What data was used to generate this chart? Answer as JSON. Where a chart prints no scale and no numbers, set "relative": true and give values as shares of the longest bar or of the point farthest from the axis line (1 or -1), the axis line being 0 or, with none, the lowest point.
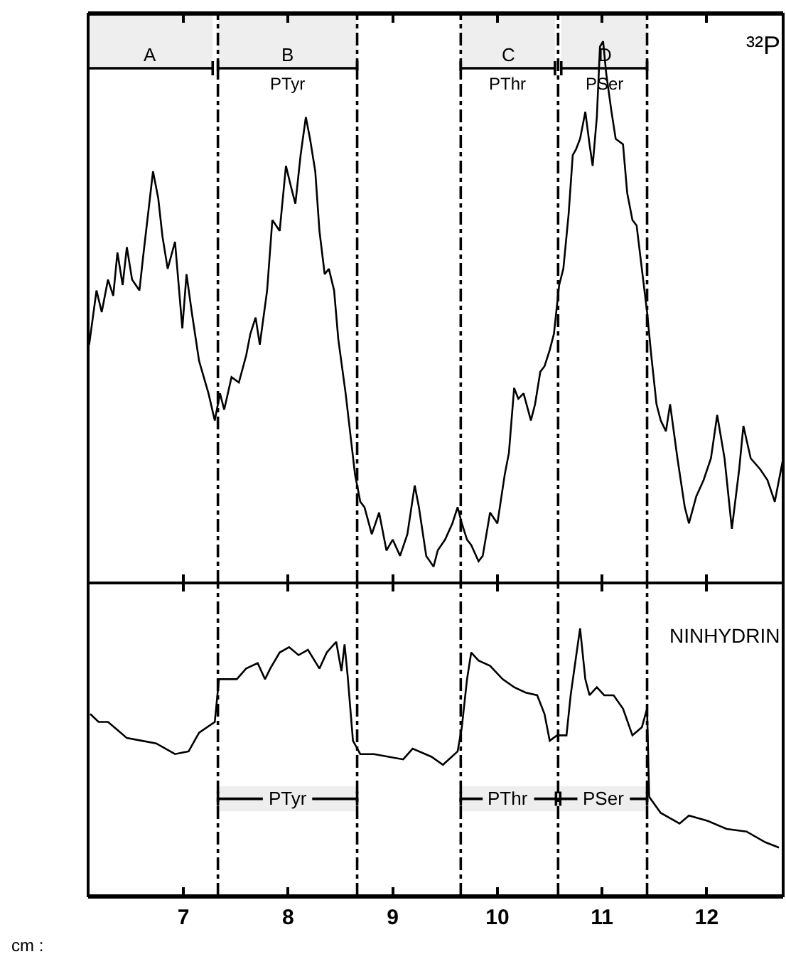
{
  "chart_data": [
    {
      "type": "line",
      "relative": true,
      "tick_labels": false,
      "color": "#000000",
      "line_style": "solid",
      "marker": "none",
      "grid": false,
      "legend": false,
      "xlim": [
        6.09,
        12.73
      ],
      "xticks": [
        7,
        8,
        9,
        10,
        11,
        12
      ],
      "x": [
        6.1,
        6.17,
        6.22,
        6.28,
        6.33,
        6.37,
        6.42,
        6.46,
        6.51,
        6.58,
        6.62,
        6.71,
        6.76,
        6.8,
        6.85,
        6.92,
        6.99,
        7.03,
        7.08,
        7.15,
        7.24,
        7.3,
        7.35,
        7.39,
        7.46,
        7.53,
        7.6,
        7.64,
        7.69,
        7.73,
        7.8,
        7.85,
        7.92,
        7.98,
        8.03,
        8.07,
        8.12,
        8.17,
        8.21,
        8.26,
        8.3,
        8.35,
        8.39,
        8.44,
        8.48,
        8.55,
        8.64,
        8.69,
        8.73,
        8.8,
        8.87,
        8.94,
        9.0,
        9.07,
        9.14,
        9.21,
        9.25,
        9.32,
        9.39,
        9.43,
        9.5,
        9.57,
        9.62,
        9.66,
        9.71,
        9.75,
        9.82,
        9.86,
        9.93,
        10.0,
        10.07,
        10.11,
        10.16,
        10.2,
        10.25,
        10.32,
        10.36,
        10.41,
        10.45,
        10.5,
        10.54,
        10.59,
        10.63,
        10.68,
        10.72,
        10.75,
        10.79,
        10.84,
        10.88,
        10.91,
        10.95,
        10.98,
        11.01,
        11.04,
        11.09,
        11.13,
        11.2,
        11.24,
        11.29,
        11.33,
        11.38,
        11.43,
        11.47,
        11.52,
        11.56,
        11.61,
        11.65,
        11.72,
        11.79,
        11.83,
        11.9,
        11.97,
        12.04,
        12.1,
        12.17,
        12.24,
        12.31,
        12.35,
        12.42,
        12.51,
        12.58,
        12.65,
        12.73
      ],
      "values": [
        0.44,
        0.54,
        0.5,
        0.56,
        0.53,
        0.61,
        0.55,
        0.62,
        0.56,
        0.54,
        0.61,
        0.76,
        0.71,
        0.64,
        0.58,
        0.63,
        0.47,
        0.57,
        0.5,
        0.41,
        0.35,
        0.3,
        0.35,
        0.32,
        0.38,
        0.37,
        0.42,
        0.46,
        0.49,
        0.44,
        0.54,
        0.67,
        0.65,
        0.77,
        0.73,
        0.7,
        0.79,
        0.86,
        0.82,
        0.76,
        0.65,
        0.57,
        0.58,
        0.54,
        0.45,
        0.35,
        0.2,
        0.15,
        0.14,
        0.09,
        0.13,
        0.06,
        0.08,
        0.05,
        0.09,
        0.18,
        0.14,
        0.05,
        0.03,
        0.06,
        0.08,
        0.11,
        0.14,
        0.11,
        0.08,
        0.07,
        0.04,
        0.05,
        0.13,
        0.11,
        0.2,
        0.24,
        0.36,
        0.34,
        0.35,
        0.3,
        0.33,
        0.39,
        0.4,
        0.43,
        0.46,
        0.55,
        0.58,
        0.68,
        0.79,
        0.8,
        0.82,
        0.87,
        0.81,
        0.77,
        0.86,
        0.99,
        1,
        0.94,
        0.87,
        0.82,
        0.81,
        0.72,
        0.67,
        0.66,
        0.58,
        0.5,
        0.42,
        0.33,
        0.3,
        0.28,
        0.33,
        0.23,
        0.14,
        0.11,
        0.16,
        0.19,
        0.23,
        0.31,
        0.23,
        0.1,
        0.21,
        0.29,
        0.23,
        0.21,
        0.19,
        0.15,
        0.23
      ],
      "ref_lines": [
        {
          "axis": "x",
          "value": 7.33,
          "line_style": "dashed"
        },
        {
          "axis": "x",
          "value": 8.66,
          "line_style": "dashed"
        },
        {
          "axis": "x",
          "value": 9.65,
          "line_style": "dashed"
        },
        {
          "axis": "x",
          "value": 10.58,
          "line_style": "dashed"
        },
        {
          "axis": "x",
          "value": 11.43,
          "line_style": "dashed"
        }
      ],
      "bands": [
        {
          "axis": "x",
          "from": 6.09,
          "to": 7.28,
          "label": "A"
        },
        {
          "axis": "x",
          "from": 7.33,
          "to": 8.66,
          "label": "B\nPTyr"
        },
        {
          "axis": "x",
          "from": 9.65,
          "to": 10.55,
          "label": "C\nPThr"
        },
        {
          "axis": "x",
          "from": 10.61,
          "to": 11.43,
          "label": "D\nPSer"
        }
      ],
      "annotations": [
        "³²P"
      ]
    },
    {
      "type": "line",
      "relative": true,
      "tick_labels": "x",
      "color": "#000000",
      "line_style": "solid",
      "marker": "none",
      "grid": false,
      "legend": false,
      "xlabel": "cm :",
      "xlim": [
        6.09,
        12.73
      ],
      "xticks": [
        7,
        8,
        9,
        10,
        11,
        12
      ],
      "x": [
        6.11,
        6.19,
        6.28,
        6.37,
        6.46,
        6.6,
        6.74,
        6.92,
        7.05,
        7.15,
        7.3,
        7.34,
        7.42,
        7.51,
        7.6,
        7.71,
        7.78,
        7.83,
        7.92,
        8.01,
        8.1,
        8.19,
        8.3,
        8.37,
        8.46,
        8.51,
        8.54,
        8.57,
        8.62,
        8.69,
        8.82,
        8.96,
        9.1,
        9.19,
        9.37,
        9.48,
        9.62,
        9.66,
        9.71,
        9.75,
        9.82,
        9.93,
        10.05,
        10.16,
        10.27,
        10.38,
        10.45,
        10.5,
        10.57,
        10.66,
        10.7,
        10.75,
        10.79,
        10.84,
        10.88,
        10.95,
        11.02,
        11.11,
        11.2,
        11.29,
        11.38,
        11.43,
        11.45,
        11.56,
        11.74,
        11.83,
        12.01,
        12.19,
        12.38,
        12.56,
        12.69
      ],
      "values": [
        0.68,
        0.65,
        0.65,
        0.62,
        0.59,
        0.58,
        0.57,
        0.53,
        0.54,
        0.61,
        0.65,
        0.81,
        0.81,
        0.81,
        0.85,
        0.87,
        0.81,
        0.85,
        0.91,
        0.93,
        0.9,
        0.92,
        0.85,
        0.91,
        0.95,
        0.84,
        0.94,
        0.82,
        0.58,
        0.53,
        0.53,
        0.52,
        0.51,
        0.55,
        0.52,
        0.49,
        0.54,
        0.63,
        0.81,
        0.91,
        0.88,
        0.86,
        0.81,
        0.78,
        0.76,
        0.75,
        0.68,
        0.58,
        0.6,
        0.6,
        0.75,
        0.89,
        1,
        0.81,
        0.75,
        0.78,
        0.75,
        0.75,
        0.7,
        0.6,
        0.63,
        0.7,
        0.37,
        0.31,
        0.27,
        0.3,
        0.28,
        0.25,
        0.24,
        0.2,
        0.18
      ],
      "ref_lines": [
        {
          "axis": "x",
          "value": 7.33,
          "line_style": "dashed"
        },
        {
          "axis": "x",
          "value": 8.66,
          "line_style": "dashed"
        },
        {
          "axis": "x",
          "value": 9.65,
          "line_style": "dashed"
        },
        {
          "axis": "x",
          "value": 10.58,
          "line_style": "dashed"
        },
        {
          "axis": "x",
          "value": 11.43,
          "line_style": "dashed"
        }
      ],
      "bands": [
        {
          "axis": "x",
          "from": 7.33,
          "to": 8.66,
          "label": "PTyr"
        },
        {
          "axis": "x",
          "from": 9.65,
          "to": 10.56,
          "label": "PThr"
        },
        {
          "axis": "x",
          "from": 10.6,
          "to": 11.43,
          "label": "PSer"
        }
      ],
      "annotations": [
        "NINHYDRIN"
      ]
    }
  ]
}
